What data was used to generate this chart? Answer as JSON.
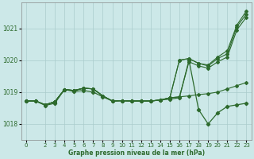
{
  "title": "Graphe pression niveau de la mer (hPa)",
  "bg_color": "#cce8e8",
  "line_color": "#2d6a2d",
  "xlim": [
    -0.5,
    23.5
  ],
  "ylim": [
    1017.5,
    1021.8
  ],
  "yticks": [
    1018,
    1019,
    1020,
    1021
  ],
  "xticks": [
    0,
    2,
    3,
    4,
    5,
    6,
    7,
    8,
    9,
    10,
    11,
    12,
    13,
    14,
    15,
    16,
    17,
    18,
    19,
    20,
    21,
    22,
    23
  ],
  "lines": [
    [
      1018.72,
      1018.72,
      1018.6,
      1018.7,
      1019.08,
      1019.05,
      1019.12,
      1019.1,
      1018.88,
      1018.72,
      1018.73,
      1018.72,
      1018.72,
      1018.72,
      1018.75,
      1018.82,
      1018.85,
      1018.88,
      1018.92,
      1018.95,
      1019.0,
      1019.1,
      1019.2,
      1019.3
    ],
    [
      1018.72,
      1018.72,
      1018.6,
      1018.7,
      1019.08,
      1019.05,
      1019.12,
      1019.1,
      1018.88,
      1018.72,
      1018.73,
      1018.72,
      1018.72,
      1018.72,
      1018.75,
      1018.82,
      1018.85,
      1019.95,
      1019.82,
      1019.75,
      1019.95,
      1020.1,
      1020.95,
      1021.35
    ],
    [
      1018.72,
      1018.72,
      1018.6,
      1018.7,
      1019.08,
      1019.05,
      1019.12,
      1019.1,
      1018.88,
      1018.72,
      1018.73,
      1018.72,
      1018.72,
      1018.72,
      1018.75,
      1018.82,
      1020.0,
      1020.05,
      1019.9,
      1019.82,
      1020.05,
      1020.2,
      1021.05,
      1021.45
    ],
    [
      1018.72,
      1018.72,
      1018.6,
      1018.7,
      1019.08,
      1019.05,
      1019.12,
      1019.1,
      1018.88,
      1018.72,
      1018.73,
      1018.72,
      1018.72,
      1018.72,
      1018.75,
      1018.82,
      1020.0,
      1020.05,
      1019.9,
      1019.85,
      1020.1,
      1020.3,
      1021.1,
      1021.55
    ]
  ],
  "detail_line_x": [
    0,
    1,
    2,
    3,
    4,
    5,
    6,
    7,
    8,
    9,
    10,
    11,
    12,
    13,
    14,
    15,
    16,
    17,
    18,
    19,
    20,
    21,
    22,
    23
  ],
  "detail_line_y": [
    1018.72,
    1018.72,
    1018.58,
    1018.65,
    1019.08,
    1019.02,
    1019.05,
    1019.0,
    1018.85,
    1018.72,
    1018.73,
    1018.72,
    1018.72,
    1018.72,
    1018.75,
    1018.78,
    1018.82,
    1020.0,
    1018.45,
    1018.0,
    1018.35,
    1018.55,
    1018.6,
    1018.65
  ]
}
